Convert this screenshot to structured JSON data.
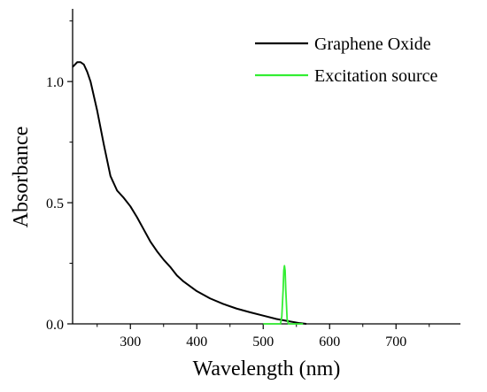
{
  "chart_data": {
    "type": "line",
    "title": "",
    "xlabel": "Wavelength (nm)",
    "ylabel": "Absorbance",
    "xlim": [
      213,
      797
    ],
    "ylim": [
      0,
      1.3
    ],
    "x_ticks": [
      300,
      400,
      500,
      600,
      700
    ],
    "y_ticks": [
      0.0,
      0.5,
      1.0
    ],
    "x_tick_labels": [
      "300",
      "400",
      "500",
      "600",
      "700"
    ],
    "y_tick_labels": [
      "0.0",
      "0.5",
      "1.0"
    ],
    "grid": false,
    "legend_position": "top-right",
    "series": [
      {
        "name": "Graphene Oxide",
        "color": "#000000",
        "x": [
          213,
          220,
          225,
          230,
          235,
          240,
          250,
          260,
          270,
          280,
          290,
          300,
          310,
          320,
          330,
          340,
          350,
          360,
          370,
          380,
          390,
          400,
          420,
          440,
          460,
          480,
          500,
          520,
          540,
          555,
          565
        ],
        "y": [
          1.06,
          1.08,
          1.08,
          1.07,
          1.04,
          1.0,
          0.88,
          0.74,
          0.61,
          0.55,
          0.52,
          0.485,
          0.44,
          0.39,
          0.34,
          0.3,
          0.265,
          0.235,
          0.2,
          0.175,
          0.155,
          0.135,
          0.105,
          0.082,
          0.063,
          0.048,
          0.034,
          0.02,
          0.01,
          0.003,
          0.0
        ]
      },
      {
        "name": "Excitation source",
        "color": "#33ee33",
        "x": [
          500,
          520,
          526,
          528,
          530,
          531,
          532,
          533,
          534,
          536,
          538,
          560
        ],
        "y": [
          0.0,
          0.0,
          0.0,
          0.03,
          0.14,
          0.22,
          0.24,
          0.22,
          0.14,
          0.02,
          0.0,
          0.0
        ]
      }
    ]
  }
}
